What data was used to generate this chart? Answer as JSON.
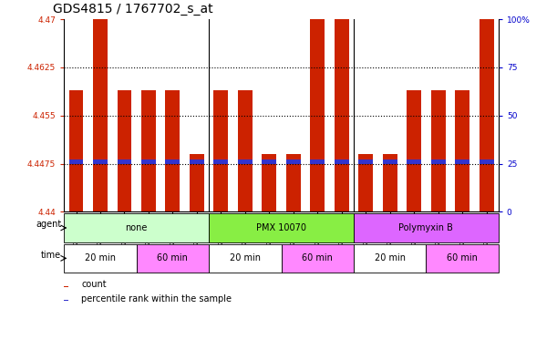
{
  "title": "GDS4815 / 1767702_s_at",
  "samples": [
    "GSM770862",
    "GSM770863",
    "GSM770864",
    "GSM770871",
    "GSM770872",
    "GSM770873",
    "GSM770865",
    "GSM770866",
    "GSM770867",
    "GSM770874",
    "GSM770875",
    "GSM770876",
    "GSM770868",
    "GSM770869",
    "GSM770870",
    "GSM770877",
    "GSM770878",
    "GSM770879"
  ],
  "red_values": [
    4.459,
    4.47,
    4.459,
    4.459,
    4.459,
    4.449,
    4.459,
    4.459,
    4.449,
    4.449,
    4.47,
    4.47,
    4.449,
    4.449,
    4.459,
    4.459,
    4.459,
    4.47
  ],
  "blue_values": [
    4.4478,
    4.4478,
    4.4478,
    4.4478,
    4.4478,
    4.4478,
    4.4478,
    4.4478,
    4.4478,
    4.4478,
    4.4478,
    4.4478,
    4.4478,
    4.4478,
    4.4478,
    4.4478,
    4.4478,
    4.4478
  ],
  "ymin": 4.44,
  "ymax": 4.47,
  "yticks": [
    4.44,
    4.4475,
    4.455,
    4.4625,
    4.47
  ],
  "ytick_labels": [
    "4.44",
    "4.4475",
    "4.455",
    "4.4625",
    "4.47"
  ],
  "right_yticks": [
    0,
    25,
    50,
    75,
    100
  ],
  "right_ytick_labels": [
    "0",
    "25",
    "50",
    "75",
    "100%"
  ],
  "dotted_lines": [
    4.4475,
    4.455,
    4.4625
  ],
  "bar_color": "#cc2200",
  "blue_color": "#3333cc",
  "agent_groups": [
    {
      "label": "none",
      "start": 0,
      "end": 6,
      "color": "#ccffcc"
    },
    {
      "label": "PMX 10070",
      "start": 6,
      "end": 12,
      "color": "#88ee44"
    },
    {
      "label": "Polymyxin B",
      "start": 12,
      "end": 18,
      "color": "#dd66ff"
    }
  ],
  "time_groups": [
    {
      "label": "20 min",
      "start": 0,
      "end": 3,
      "color": "#ffffff"
    },
    {
      "label": "60 min",
      "start": 3,
      "end": 6,
      "color": "#ff88ff"
    },
    {
      "label": "20 min",
      "start": 6,
      "end": 9,
      "color": "#ffffff"
    },
    {
      "label": "60 min",
      "start": 9,
      "end": 12,
      "color": "#ff88ff"
    },
    {
      "label": "20 min",
      "start": 12,
      "end": 15,
      "color": "#ffffff"
    },
    {
      "label": "60 min",
      "start": 15,
      "end": 18,
      "color": "#ff88ff"
    }
  ],
  "legend_items": [
    {
      "label": "count",
      "color": "#cc2200"
    },
    {
      "label": "percentile rank within the sample",
      "color": "#3333cc"
    }
  ]
}
